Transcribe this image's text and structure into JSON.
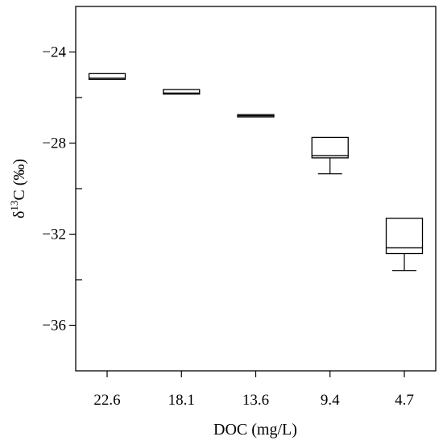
{
  "chart_data": {
    "type": "box",
    "xlabel": "DOC (mg/L)",
    "ylabel_parts": {
      "prefix": "δ",
      "sup": "13",
      "suffix": "C (‰)"
    },
    "categories": [
      "22.6",
      "18.1",
      "13.6",
      "9.4",
      "4.7"
    ],
    "ylim": [
      -38,
      -22
    ],
    "yticks_labeled": [
      -24,
      -28,
      -32,
      -36
    ],
    "yticks_minor": [
      -26,
      -30,
      -34
    ],
    "ytick_labels": [
      "−24",
      "−28",
      "−32",
      "−36"
    ],
    "grid": false,
    "legend": "none",
    "boxes": [
      {
        "category": "22.6",
        "q1": -25.2,
        "median": -25.15,
        "q3": -24.95,
        "whisker_low": null,
        "whisker_high": null
      },
      {
        "category": "18.1",
        "q1": -25.85,
        "median": -25.8,
        "q3": -25.65,
        "whisker_low": null,
        "whisker_high": null
      },
      {
        "category": "13.6",
        "q1": -26.85,
        "median": -26.8,
        "q3": -26.75,
        "whisker_low": null,
        "whisker_high": null
      },
      {
        "category": "9.4",
        "q1": -28.65,
        "median": -28.55,
        "q3": -27.75,
        "whisker_low": -29.35,
        "whisker_high": null
      },
      {
        "category": "4.7",
        "q1": -32.85,
        "median": -32.6,
        "q3": -31.3,
        "whisker_low": -33.6,
        "whisker_high": null
      }
    ]
  }
}
